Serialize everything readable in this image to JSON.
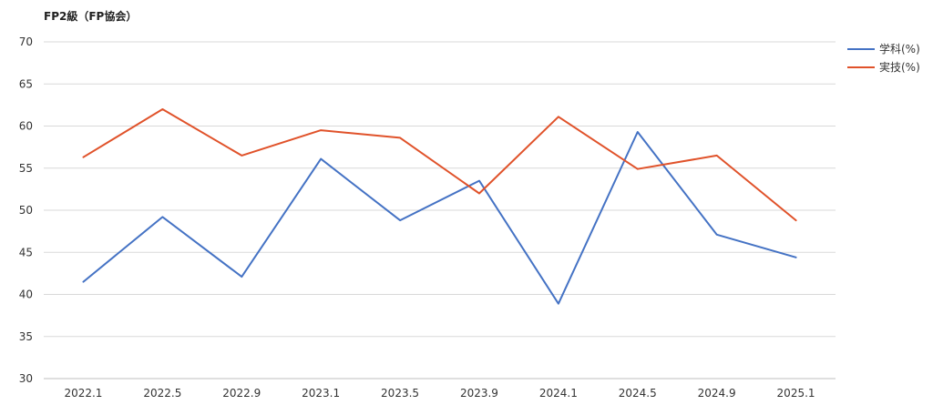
{
  "chart_data": {
    "type": "line",
    "title": "FP2級（FP協会）",
    "xlabel": "",
    "ylabel": "",
    "categories": [
      "2022.1",
      "2022.5",
      "2022.9",
      "2023.1",
      "2023.5",
      "2023.9",
      "2024.1",
      "2024.5",
      "2024.9",
      "2025.1"
    ],
    "ylim": [
      30,
      70
    ],
    "yticks": [
      30,
      35,
      40,
      45,
      50,
      55,
      60,
      65,
      70
    ],
    "grid": true,
    "legend_position": "right",
    "series": [
      {
        "name": "学科(%)",
        "color": "#4472c4",
        "values": [
          41.5,
          49.2,
          42.1,
          56.1,
          48.8,
          53.5,
          38.9,
          59.3,
          47.1,
          44.4
        ]
      },
      {
        "name": "実技(%)",
        "color": "#e0522a",
        "values": [
          56.3,
          62.0,
          56.5,
          59.5,
          58.6,
          52.0,
          61.1,
          54.9,
          56.5,
          48.8
        ]
      }
    ]
  }
}
